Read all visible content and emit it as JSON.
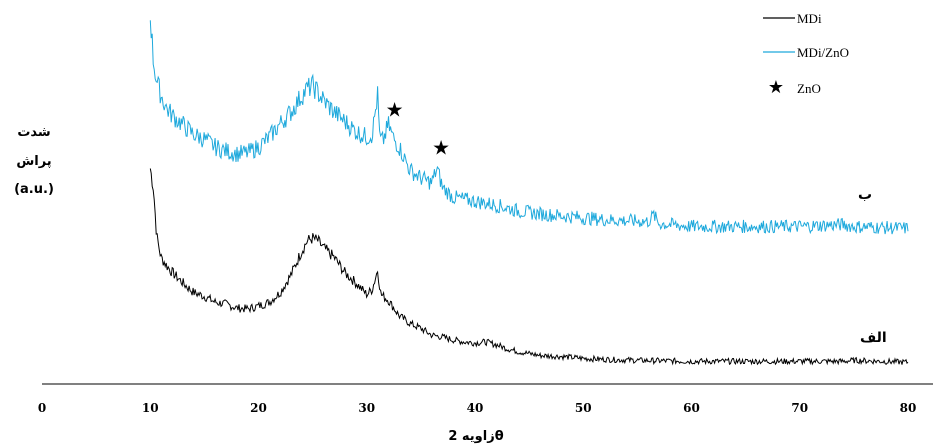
{
  "chart_data": {
    "type": "line",
    "xlabel": "زاویه  2θ",
    "ylabel": [
      "شدت",
      "پراش",
      "(a.u.)"
    ],
    "xlim": [
      0,
      80
    ],
    "xticks": [
      0,
      10,
      20,
      30,
      40,
      50,
      60,
      70,
      80
    ],
    "y_units": "a.u. (arbitrary, offset traces)",
    "grid": false,
    "legend_position": "top-right",
    "legend": [
      {
        "label": "MDi",
        "kind": "line",
        "color": "#000000"
      },
      {
        "label": "MDi/ZnO",
        "kind": "line",
        "color": "#1fa9dc"
      },
      {
        "label": "ZnO",
        "kind": "star",
        "color": "#000000"
      }
    ],
    "series": [
      {
        "name": "MDi",
        "curve_label": "الف",
        "color": "#000000",
        "x": [
          10,
          10.3,
          10.6,
          11,
          11.5,
          12,
          13,
          14,
          15,
          16,
          17,
          18,
          19,
          20,
          21,
          22,
          23,
          24,
          24.5,
          25,
          25.5,
          26,
          27,
          28,
          29,
          30,
          30.5,
          31,
          31.3,
          32,
          33,
          34,
          35,
          36,
          37,
          38,
          39,
          40,
          41,
          42,
          43,
          44,
          45,
          46,
          48,
          50,
          52,
          55,
          60,
          65,
          70,
          74,
          75,
          80
        ],
        "y": [
          210,
          190,
          140,
          118,
          110,
          103,
          92,
          82,
          78,
          72,
          70,
          66,
          65,
          68,
          72,
          82,
          100,
          125,
          135,
          138,
          135,
          128,
          118,
          102,
          92,
          80,
          85,
          105,
          80,
          74,
          58,
          50,
          45,
          38,
          36,
          33,
          31,
          30,
          31,
          28,
          24,
          21,
          19,
          17,
          16,
          14,
          13,
          12,
          11,
          11,
          11,
          11,
          12,
          10
        ]
      },
      {
        "name": "MDi/ZnO",
        "curve_label": "ب",
        "color": "#1fa9dc",
        "x": [
          10,
          10.3,
          10.6,
          11,
          11.5,
          12,
          13,
          14,
          15,
          16,
          17,
          18,
          19,
          20,
          21,
          22,
          23,
          24,
          24.5,
          25,
          25.5,
          26,
          27,
          28,
          29,
          30,
          30.5,
          31,
          31.2,
          31.5,
          32,
          32.5,
          33,
          34,
          35,
          36,
          36.5,
          37,
          38,
          40,
          42,
          44,
          46,
          48,
          50,
          52,
          54,
          56,
          56.5,
          57,
          60,
          65,
          70,
          74,
          75,
          80
        ],
        "y": [
          370,
          320,
          300,
          285,
          272,
          265,
          255,
          245,
          240,
          232,
          228,
          225,
          226,
          232,
          242,
          256,
          268,
          285,
          292,
          295,
          288,
          280,
          268,
          258,
          248,
          242,
          245,
          285,
          240,
          238,
          255,
          240,
          232,
          208,
          200,
          195,
          210,
          190,
          180,
          176,
          172,
          166,
          163,
          161,
          159,
          157,
          156,
          155,
          162,
          153,
          150,
          150,
          150,
          152,
          150,
          148
        ]
      }
    ],
    "annotations": [
      {
        "label": "★",
        "meaning": "ZnO",
        "x": 32.2
      },
      {
        "label": "★",
        "meaning": "ZnO",
        "x": 36.5
      }
    ]
  }
}
